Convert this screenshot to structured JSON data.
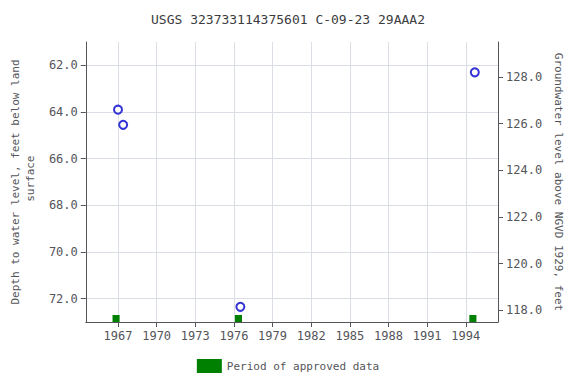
{
  "chart_data": {
    "type": "scatter",
    "title": "USGS 323733114375601 C-09-23 29AAA2",
    "ylabel": "Depth to water level, feet below land\n surface",
    "y2label": "Groundwater level above NGVD 1929, feet",
    "xlim": [
      1964.5,
      1996.5
    ],
    "xticks": [
      1967,
      1970,
      1973,
      1976,
      1979,
      1982,
      1985,
      1988,
      1991,
      1994
    ],
    "ylim": [
      73.0,
      61.0
    ],
    "yticks": [
      {
        "value": 62,
        "label": "62.0"
      },
      {
        "value": 64,
        "label": "64.0"
      },
      {
        "value": 66,
        "label": "66.0"
      },
      {
        "value": 68,
        "label": "68.0"
      },
      {
        "value": 70,
        "label": "70.0"
      },
      {
        "value": 72,
        "label": "72.0"
      }
    ],
    "y2lim": [
      117.5,
      129.5
    ],
    "y2ticks": [
      {
        "value": 118,
        "label": "118.0"
      },
      {
        "value": 120,
        "label": "120.0"
      },
      {
        "value": 122,
        "label": "122.0"
      },
      {
        "value": 124,
        "label": "124.0"
      },
      {
        "value": 126,
        "label": "126.0"
      },
      {
        "value": 128,
        "label": "128.0"
      }
    ],
    "grid": true,
    "legend": "bottom",
    "series": [
      {
        "type": "scatter",
        "marker": "open_circle",
        "color": "#0000cc",
        "x": [
          1967.0,
          1967.4,
          1976.5,
          1994.7
        ],
        "values": [
          63.9,
          64.55,
          72.35,
          62.3
        ]
      },
      {
        "name": "Period of approved data",
        "type": "bar",
        "color": "#008000",
        "x": [
          1966.85,
          1976.35,
          1994.55
        ],
        "width": 0.55
      }
    ]
  }
}
